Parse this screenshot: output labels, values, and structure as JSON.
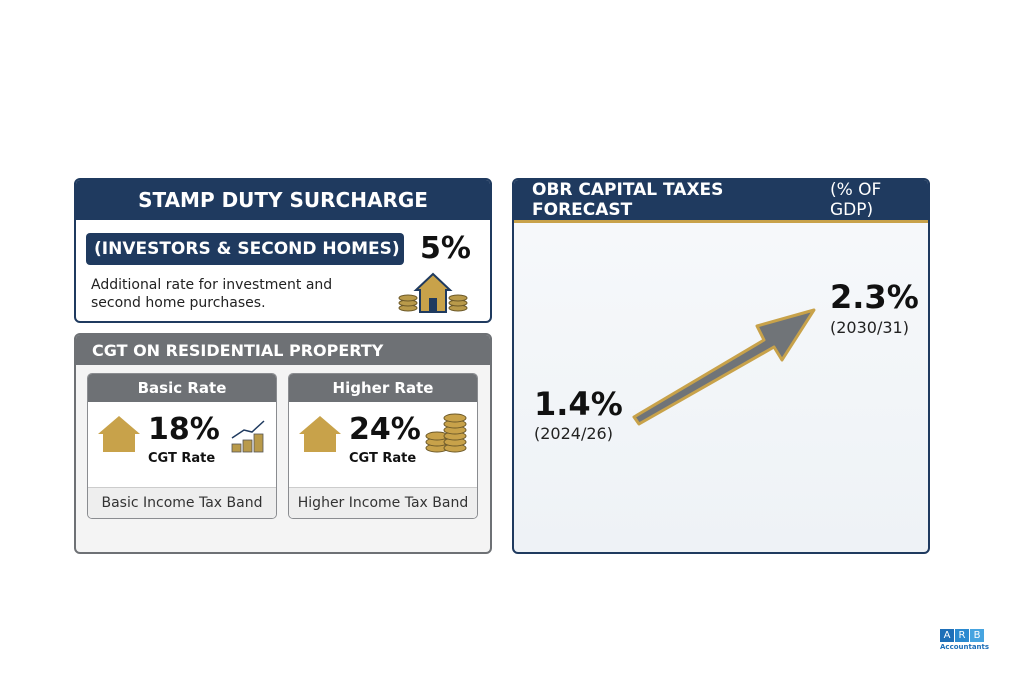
{
  "stamp_duty": {
    "title": "STAMP DUTY SURCHARGE",
    "subtitle": "(INVESTORS & SECOND HOMES)",
    "rate": "5%",
    "description": "Additional rate for investment and second home purchases."
  },
  "cgt": {
    "title": "CGT ON RESIDENTIAL PROPERTY",
    "cards": [
      {
        "title": "Basic Rate",
        "rate": "18%",
        "rate_label": "CGT Rate",
        "band": "Basic Income Tax Band"
      },
      {
        "title": "Higher Rate",
        "rate": "24%",
        "rate_label": "CGT Rate",
        "band": "Higher Income Tax Band"
      }
    ]
  },
  "obr": {
    "title": "OBR CAPITAL TAXES FORECAST",
    "title_unit": "(% OF GDP)",
    "start": {
      "value": "1.4%",
      "period": "(2024/26)"
    },
    "end": {
      "value": "2.3%",
      "period": "(2030/31)"
    }
  },
  "logo": {
    "letters": [
      "A",
      "R",
      "B"
    ],
    "name": "Accountants"
  }
}
